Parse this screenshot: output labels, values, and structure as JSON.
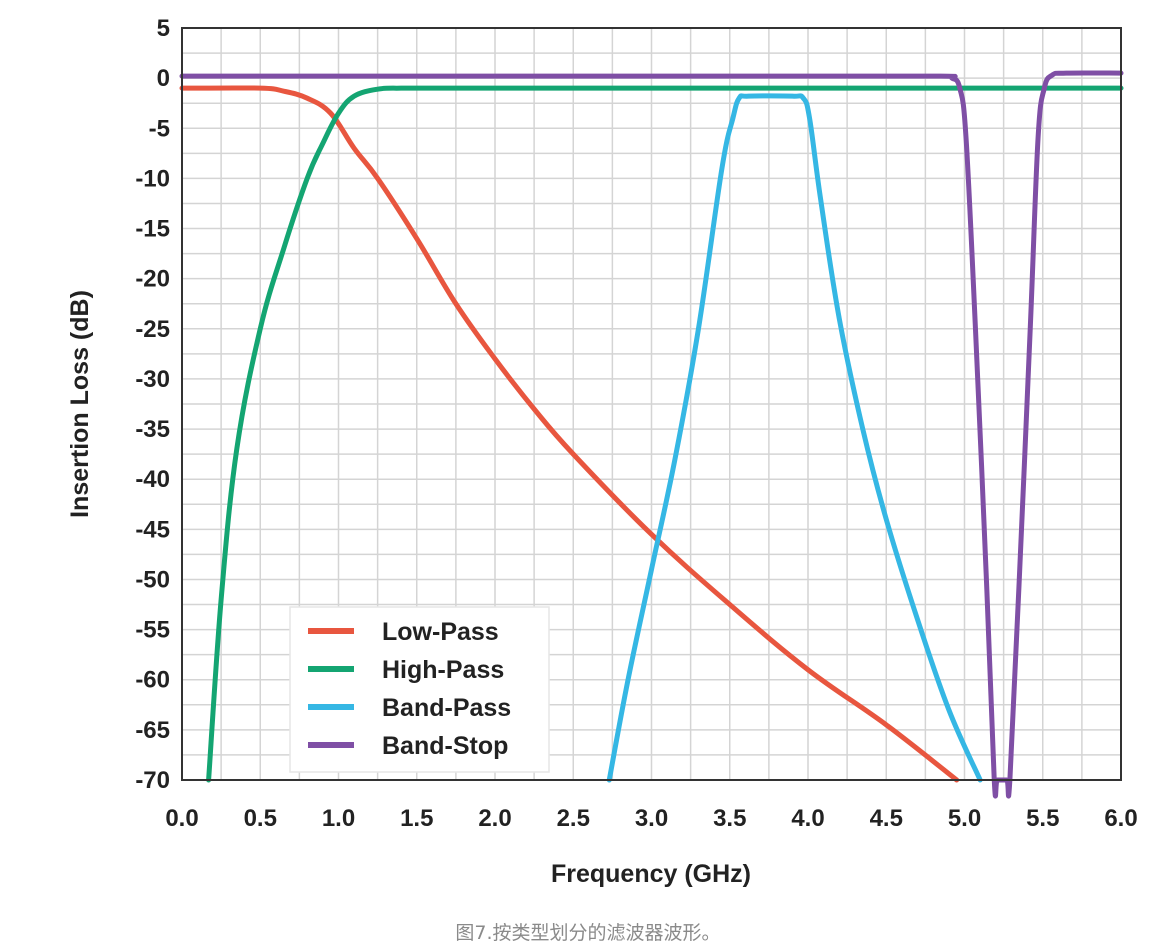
{
  "chart_data": {
    "type": "line",
    "xlabel": "Frequency (GHz)",
    "ylabel": "Insertion Loss (dB)",
    "xlim": [
      0,
      6
    ],
    "ylim": [
      -70,
      5
    ],
    "x_ticks": [
      "0.0",
      "0.5",
      "1.0",
      "1.5",
      "2.0",
      "2.5",
      "3.0",
      "3.5",
      "4.0",
      "4.5",
      "5.0",
      "5.5",
      "6.0"
    ],
    "y_ticks": [
      "5",
      "0",
      "-5",
      "-10",
      "-15",
      "-20",
      "-25",
      "-30",
      "-35",
      "-40",
      "-45",
      "-50",
      "-55",
      "-60",
      "-65",
      "-70"
    ],
    "grid": true,
    "legend_position": "bottom-left",
    "series": [
      {
        "name": "Low-Pass",
        "color": "#e8563f",
        "x": [
          0,
          0.5,
          0.65,
          0.8,
          0.95,
          1.1,
          1.25,
          1.5,
          1.75,
          2.0,
          2.25,
          2.5,
          3.0,
          3.5,
          4.0,
          4.5,
          4.95
        ],
        "y": [
          -1,
          -1,
          -1.3,
          -2,
          -3.5,
          -7,
          -10,
          -16,
          -22.5,
          -28,
          -33,
          -37.5,
          -45.5,
          -52.5,
          -59,
          -64.5,
          -70
        ]
      },
      {
        "name": "High-Pass",
        "color": "#14a572",
        "x": [
          0.17,
          0.25,
          0.35,
          0.5,
          0.65,
          0.8,
          0.9,
          1.0,
          1.1,
          1.25,
          1.4,
          1.6,
          2.0,
          3.0,
          4.0,
          5.0,
          6.0
        ],
        "y": [
          -70,
          -52,
          -37,
          -25,
          -17,
          -10,
          -6.5,
          -3.5,
          -1.8,
          -1.1,
          -1,
          -1,
          -1,
          -1,
          -1,
          -1,
          -1
        ]
      },
      {
        "name": "Band-Pass",
        "color": "#35b7e4",
        "x": [
          2.73,
          2.85,
          3.0,
          3.15,
          3.3,
          3.45,
          3.52,
          3.56,
          3.62,
          3.9,
          3.97,
          4.01,
          4.08,
          4.2,
          4.35,
          4.5,
          4.7,
          4.9,
          5.1
        ],
        "y": [
          -70,
          -60,
          -49,
          -38,
          -25,
          -9,
          -4,
          -2,
          -1.8,
          -1.8,
          -2,
          -4,
          -12,
          -24,
          -35,
          -44,
          -54,
          -63,
          -70
        ]
      },
      {
        "name": "Band-Stop",
        "color": "#7f4fa5",
        "x": [
          0,
          1,
          2,
          3,
          4,
          4.85,
          4.92,
          4.97,
          5.01,
          5.07,
          5.14,
          5.19,
          5.21,
          5.27,
          5.29,
          5.35,
          5.42,
          5.47,
          5.51,
          5.56,
          5.65,
          6.0
        ],
        "y": [
          0.2,
          0.2,
          0.2,
          0.2,
          0.2,
          0.2,
          0,
          -1,
          -6,
          -25,
          -50,
          -70,
          -70,
          -70,
          -70,
          -50,
          -25,
          -6,
          -1,
          0.3,
          0.5,
          0.5
        ]
      }
    ]
  },
  "caption": "图7.按类型划分的滤波器波形。"
}
